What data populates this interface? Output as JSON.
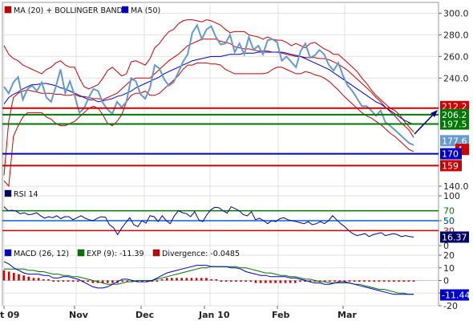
{
  "chart_data": [
    {
      "type": "line",
      "panel": "price",
      "legend": [
        {
          "label": "MA (20) + BOLLINGER BANDS",
          "color": "#cc0000"
        },
        {
          "label": "MA (50)",
          "color": "#0000cc"
        }
      ],
      "ylim": [
        140,
        310
      ],
      "yticks": [
        "300.0",
        "280.0",
        "260.0",
        "240.0",
        "140.0"
      ],
      "horizontal_lines": [
        {
          "value": 212.2,
          "label": "212.2",
          "color": "#cc0000"
        },
        {
          "value": 206.2,
          "label": "206.2",
          "color": "#007700"
        },
        {
          "value": 197.5,
          "label": "197.5",
          "color": "#007700"
        },
        {
          "value": 170,
          "label": "170",
          "color": "#0000cc"
        },
        {
          "value": 159,
          "label": "159",
          "color": "#cc0000"
        }
      ],
      "last_price_badge": {
        "label": "177.6",
        "color": "#6699cc"
      },
      "boll_badge": {
        "label": "4",
        "color": "#cc0000"
      },
      "series": [
        {
          "name": "Price",
          "color": "#6699cc",
          "values": [
            232,
            226,
            236,
            241,
            220,
            230,
            233,
            228,
            236,
            222,
            218,
            232,
            248,
            226,
            237,
            224,
            208,
            212,
            222,
            230,
            228,
            217,
            211,
            207,
            218,
            213,
            218,
            240,
            237,
            225,
            221,
            231,
            252,
            249,
            239,
            233,
            236,
            245,
            255,
            262,
            282,
            289,
            276,
            285,
            288,
            278,
            271,
            272,
            280,
            264,
            272,
            262,
            278,
            266,
            270,
            262,
            275,
            276,
            273,
            256,
            260,
            255,
            250,
            265,
            272,
            259,
            261,
            266,
            262,
            252,
            247,
            254,
            242,
            233,
            228,
            221,
            214,
            214,
            210,
            205,
            210,
            199,
            196,
            192,
            188,
            184,
            180,
            178
          ]
        },
        {
          "values": [
            270,
            262,
            258,
            256,
            252,
            250,
            248,
            246,
            244,
            248,
            250,
            254,
            256,
            252,
            250,
            250,
            240,
            232,
            230,
            232,
            234,
            240,
            247,
            250,
            246,
            242,
            244,
            255,
            256,
            254,
            252,
            258,
            268,
            272,
            278,
            283,
            285,
            290,
            293,
            294,
            294,
            293,
            292,
            294,
            293,
            291,
            289,
            285,
            282,
            283,
            283,
            283,
            280,
            279,
            278,
            276,
            278,
            276,
            275,
            275,
            273,
            270,
            272,
            270,
            268,
            272,
            273,
            270,
            267,
            265,
            262,
            262,
            258,
            254,
            250,
            246,
            240,
            235,
            229,
            224,
            220,
            216,
            212,
            210,
            206,
            200,
            195,
            190
          ]
        },
        {
          "values": [
            150,
            200,
            222,
            226,
            228,
            229,
            228,
            227,
            226,
            226,
            226,
            225,
            225,
            224,
            224,
            225,
            223,
            223,
            222,
            221,
            221,
            220,
            222,
            224,
            226,
            230,
            234,
            238,
            240,
            240,
            240,
            240,
            244,
            248,
            252,
            256,
            259,
            262,
            266,
            270,
            272,
            274,
            276,
            276,
            276,
            276,
            274,
            273,
            272,
            269,
            268,
            267,
            267,
            266,
            265,
            265,
            265,
            264,
            264,
            263,
            262,
            261,
            260,
            260,
            259,
            259,
            259,
            258,
            258,
            257,
            255,
            253,
            250,
            247,
            243,
            239,
            235,
            231,
            227,
            222,
            218,
            213,
            209,
            205,
            200,
            196,
            192,
            185
          ]
        },
        {
          "values": [
            145,
            140,
            186,
            196,
            204,
            208,
            208,
            208,
            208,
            204,
            202,
            198,
            196,
            196,
            198,
            200,
            204,
            208,
            212,
            214,
            212,
            206,
            198,
            196,
            200,
            206,
            218,
            224,
            226,
            226,
            228,
            224,
            224,
            226,
            230,
            234,
            238,
            242,
            248,
            252,
            252,
            254,
            254,
            254,
            253,
            253,
            252,
            248,
            246,
            244,
            244,
            244,
            244,
            244,
            244,
            244,
            245,
            248,
            250,
            250,
            248,
            246,
            244,
            244,
            246,
            245,
            243,
            242,
            240,
            237,
            233,
            229,
            224,
            220,
            216,
            212,
            208,
            205,
            203,
            200,
            197,
            193,
            189,
            186,
            182,
            178,
            174,
            172
          ]
        },
        {
          "values": [
            216,
            222,
            225,
            227,
            230,
            232,
            234,
            234,
            235,
            235,
            234,
            233,
            231,
            230,
            228,
            226,
            224,
            222,
            220,
            220,
            218,
            219,
            220,
            221,
            223,
            224,
            226,
            228,
            231,
            233,
            235,
            237,
            239,
            241,
            244,
            246,
            248,
            250,
            252,
            254,
            256,
            257,
            258,
            259,
            260,
            260,
            260,
            261,
            262,
            262,
            262,
            263,
            263,
            263,
            264,
            264,
            264,
            264,
            264,
            264,
            263,
            262,
            261,
            260,
            258,
            256,
            254,
            252,
            250,
            248,
            245,
            242,
            239,
            236,
            233,
            230,
            227,
            224,
            221,
            218,
            216,
            213,
            210,
            207,
            204,
            201,
            199,
            197
          ]
        }
      ]
    },
    {
      "type": "line",
      "panel": "rsi",
      "legend": [
        {
          "label": "RSI 14",
          "color": "#000066"
        }
      ],
      "ylim": [
        0,
        100
      ],
      "yticks": [
        "100",
        "50",
        "0"
      ],
      "horizontal_lines": [
        {
          "value": 70,
          "label": "70",
          "color": "#007700"
        },
        {
          "value": 50,
          "label": "50",
          "color": "#0066cc"
        },
        {
          "value": 30,
          "label": "30",
          "color": "#cc0000"
        }
      ],
      "last_value_badge": {
        "label": "16.37",
        "color": "#000066"
      },
      "series": [
        {
          "name": "RSI",
          "color": "#000099",
          "values": [
            78,
            70,
            71,
            69,
            64,
            66,
            62,
            63,
            66,
            60,
            55,
            58,
            56,
            60,
            54,
            58,
            58,
            52,
            56,
            60,
            55,
            52,
            50,
            55,
            58,
            57,
            42,
            36,
            22,
            35,
            46,
            56,
            42,
            38,
            50,
            45,
            60,
            58,
            48,
            60,
            50,
            44,
            60,
            70,
            66,
            64,
            58,
            68,
            52,
            48,
            62,
            72,
            77,
            76,
            70,
            65,
            78,
            74,
            70,
            62,
            60,
            68,
            52,
            55,
            50,
            44,
            50,
            48,
            54,
            56,
            52,
            50,
            48,
            46,
            44,
            48,
            42,
            44,
            48,
            44,
            50,
            60,
            52,
            44,
            38,
            30,
            24,
            20,
            22,
            24,
            18,
            22,
            24,
            26,
            20,
            22,
            24,
            22,
            18,
            20,
            18,
            17
          ]
        }
      ]
    },
    {
      "type": "bar",
      "panel": "macd",
      "legend": [
        {
          "label": "MACD (26, 12)",
          "color": "#0000cc"
        },
        {
          "label": "EXP (9): -11.39",
          "color": "#007700"
        },
        {
          "label": "Divergence: -0.0485",
          "color": "#cc0000"
        }
      ],
      "ylim": [
        -20,
        20
      ],
      "yticks": [
        "20",
        "10",
        "0",
        "-10",
        "-20"
      ],
      "last_value_badge": {
        "label": "-11.44",
        "color": "#0000cc"
      },
      "series": [
        {
          "name": "MACD",
          "color": "#0000cc",
          "values": [
            15,
            13,
            10,
            8,
            6,
            5,
            5,
            5,
            4,
            4,
            2,
            2,
            3,
            3,
            2,
            1,
            -1,
            -3,
            -5,
            -6,
            -6,
            -5,
            -3,
            -1,
            1,
            1,
            0,
            -1,
            -1,
            -1,
            0,
            2,
            4,
            6,
            7,
            8,
            9,
            10,
            11,
            12,
            12,
            12,
            11,
            11,
            11,
            11,
            10,
            10,
            9,
            7,
            6,
            5,
            4,
            4,
            3,
            3,
            3,
            3,
            2,
            2,
            1,
            0,
            -1,
            -2,
            -2,
            -3,
            -3,
            -2,
            -1,
            -1,
            -2,
            -3,
            -4,
            -5,
            -6,
            -7,
            -8,
            -9,
            -10,
            -11,
            -11,
            -11,
            -11,
            -11
          ]
        },
        {
          "name": "EXP",
          "color": "#007700",
          "values": [
            9,
            9,
            9,
            9,
            9,
            8,
            8,
            7,
            7,
            6,
            5,
            5,
            4,
            4,
            3,
            3,
            2,
            1,
            0,
            -1,
            -2,
            -3,
            -3,
            -3,
            -2,
            -1,
            -1,
            0,
            0,
            0,
            0,
            1,
            2,
            3,
            4,
            5,
            6,
            7,
            8,
            9,
            10,
            10,
            11,
            11,
            11,
            11,
            11,
            11,
            10,
            10,
            9,
            8,
            7,
            6,
            6,
            5,
            4,
            4,
            3,
            3,
            2,
            1,
            1,
            0,
            -1,
            -1,
            -2,
            -2,
            -2,
            -2,
            -2,
            -3,
            -3,
            -4,
            -5,
            -6,
            -7,
            -7,
            -8,
            -9,
            -10,
            -10,
            -11,
            -11
          ]
        },
        {
          "name": "Divergence",
          "color": "#cc0000",
          "values": [
            8,
            7,
            6,
            5,
            4,
            3,
            2,
            2,
            1,
            1,
            0,
            0,
            0,
            0,
            0,
            -1,
            -1,
            -1,
            -2,
            -2,
            -2,
            -2,
            -2,
            -2,
            -1,
            -1,
            -1,
            -1,
            -1,
            -1,
            -1,
            0,
            1,
            2,
            2,
            2,
            2,
            2,
            2,
            2,
            2,
            2,
            1,
            1,
            0,
            0,
            0,
            -1,
            -1,
            -1,
            -1,
            -2,
            -2,
            -2,
            -2,
            -2,
            -2,
            -2,
            -2,
            -2,
            -1,
            -1,
            -1,
            -1,
            -1,
            -1,
            -1,
            -1,
            -1,
            -1,
            -1,
            -1,
            -1,
            -1,
            -1,
            -1,
            -1,
            -1,
            -1,
            -1,
            -1,
            0,
            0,
            0
          ]
        }
      ]
    }
  ],
  "xaxis": {
    "labels": [
      "t 09",
      "Nov",
      "Dec",
      "Jan 10",
      "Feb",
      "Mar"
    ]
  }
}
